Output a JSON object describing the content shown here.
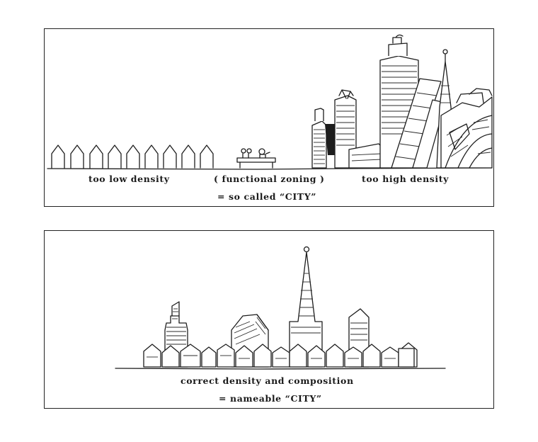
{
  "top_panel": {
    "label_low": "too low density",
    "label_zoning": "( functional zoning )",
    "label_high": "too high density",
    "label_city": "= so called “CITY”"
  },
  "bottom_panel": {
    "label_correct": "correct density and composition",
    "label_city": "= nameable “CITY”"
  }
}
